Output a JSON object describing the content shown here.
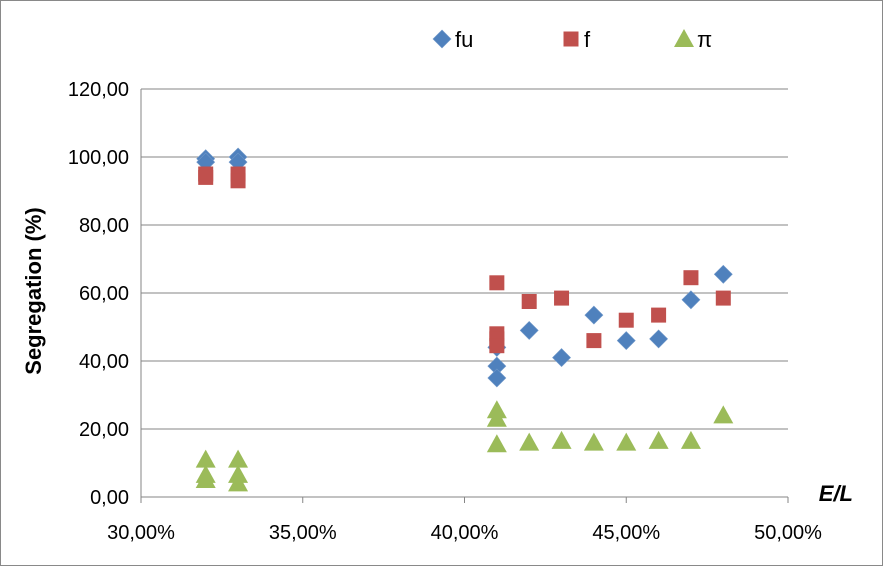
{
  "chart_data": {
    "type": "scatter",
    "title": "",
    "xlabel": "E/L",
    "ylabel": "Segregation (%)",
    "xlim": [
      0.3,
      0.5
    ],
    "ylim": [
      0,
      120
    ],
    "x_ticks": [
      "30,00%",
      "35,00%",
      "40,00%",
      "45,00%",
      "50,00%"
    ],
    "y_ticks": [
      "0,00",
      "20,00",
      "40,00",
      "60,00",
      "80,00",
      "100,00",
      "120,00"
    ],
    "x_tick_values": [
      0.3,
      0.35,
      0.4,
      0.45,
      0.5
    ],
    "y_tick_values": [
      0,
      20,
      40,
      60,
      80,
      100,
      120
    ],
    "grid": "horizontal",
    "legend_position": "top",
    "series": [
      {
        "name": "fu",
        "marker": "diamond",
        "color": "#4F81BD",
        "points": [
          [
            0.32,
            99.5
          ],
          [
            0.32,
            98.5
          ],
          [
            0.33,
            100.0
          ],
          [
            0.33,
            98.5
          ],
          [
            0.41,
            44.0
          ],
          [
            0.41,
            38.5
          ],
          [
            0.41,
            35.0
          ],
          [
            0.42,
            49.0
          ],
          [
            0.43,
            41.0
          ],
          [
            0.44,
            53.5
          ],
          [
            0.45,
            46.0
          ],
          [
            0.46,
            46.5
          ],
          [
            0.47,
            58.0
          ],
          [
            0.48,
            65.5
          ]
        ]
      },
      {
        "name": "f",
        "marker": "square",
        "color": "#C0504D",
        "points": [
          [
            0.32,
            95.0
          ],
          [
            0.32,
            94.0
          ],
          [
            0.33,
            95.0
          ],
          [
            0.33,
            93.0
          ],
          [
            0.41,
            63.0
          ],
          [
            0.41,
            48.0
          ],
          [
            0.41,
            46.5
          ],
          [
            0.41,
            44.5
          ],
          [
            0.42,
            57.5
          ],
          [
            0.43,
            58.5
          ],
          [
            0.44,
            46.0
          ],
          [
            0.45,
            52.0
          ],
          [
            0.46,
            53.5
          ],
          [
            0.47,
            64.5
          ],
          [
            0.48,
            58.5
          ]
        ]
      },
      {
        "name": "π",
        "marker": "triangle",
        "color": "#9BBB59",
        "points": [
          [
            0.32,
            11.0
          ],
          [
            0.32,
            6.5
          ],
          [
            0.32,
            5.0
          ],
          [
            0.33,
            11.0
          ],
          [
            0.33,
            6.5
          ],
          [
            0.33,
            4.0
          ],
          [
            0.41,
            25.5
          ],
          [
            0.41,
            23.0
          ],
          [
            0.41,
            15.5
          ],
          [
            0.42,
            16.0
          ],
          [
            0.43,
            16.5
          ],
          [
            0.44,
            16.0
          ],
          [
            0.45,
            16.0
          ],
          [
            0.46,
            16.5
          ],
          [
            0.47,
            16.5
          ],
          [
            0.48,
            24.0
          ]
        ]
      }
    ]
  }
}
